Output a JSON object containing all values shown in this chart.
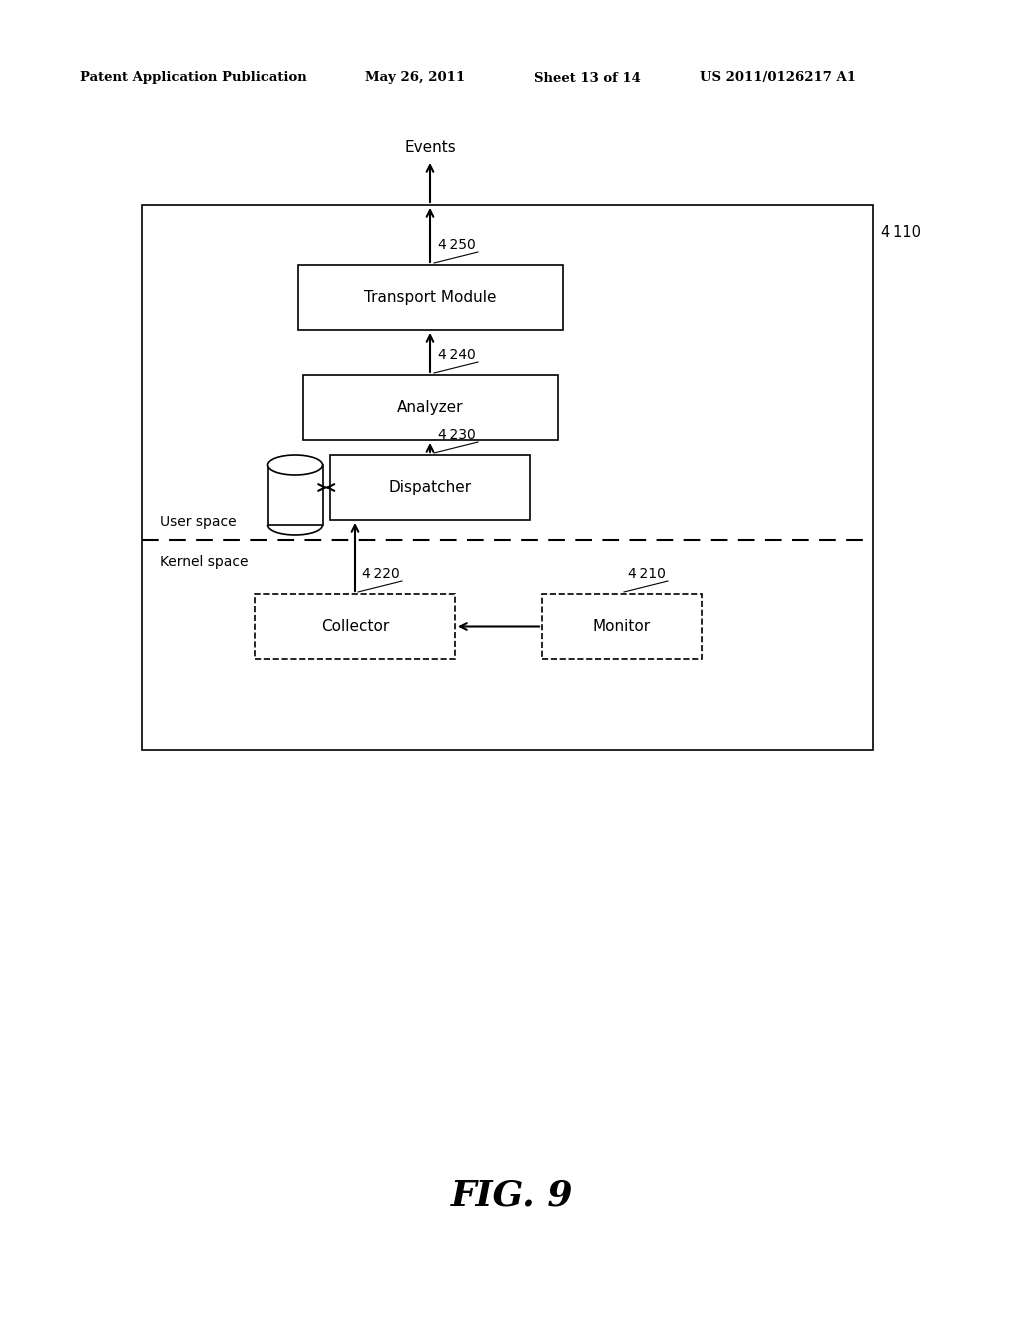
{
  "title_line1": "Patent Application Publication",
  "title_date": "May 26, 2011",
  "title_sheet": "Sheet 13 of 14",
  "title_patent": "US 2011/0126217 A1",
  "fig_label": "FIG. 9",
  "outer_box_label": "4 110",
  "events_label": "Events",
  "transport_module_label": "Transport Module",
  "transport_module_ref": "4 250",
  "analyzer_label": "Analyzer",
  "analyzer_ref": "4 240",
  "dispatcher_label": "Dispatcher",
  "dispatcher_ref": "4 230",
  "collector_label": "Collector",
  "collector_ref": "4 220",
  "monitor_label": "Monitor",
  "monitor_ref": "4 210",
  "user_space_label": "User space",
  "kernel_space_label": "Kernel space",
  "bg_color": "#ffffff",
  "box_edge_color": "#000000",
  "text_color": "#000000"
}
